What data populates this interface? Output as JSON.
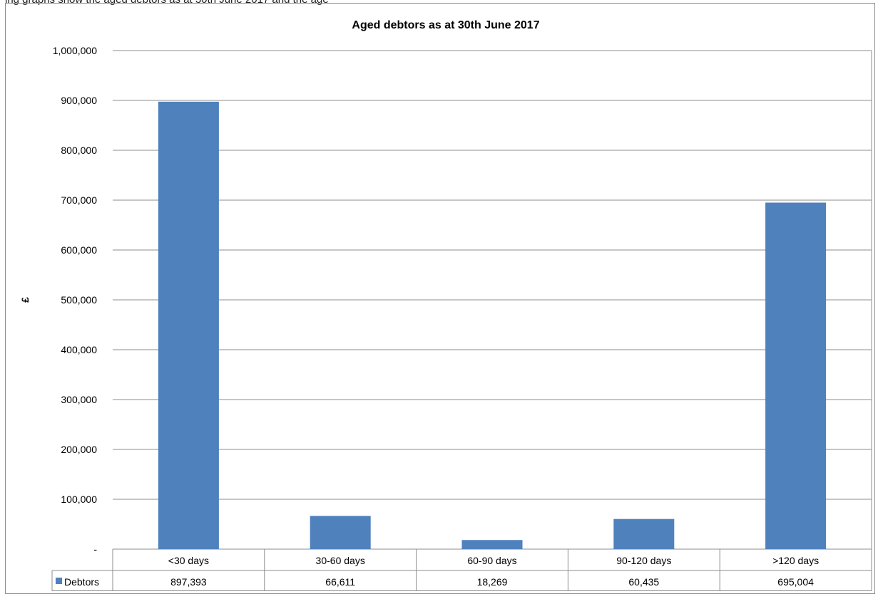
{
  "caption": "ing graphs show the aged debtors as at 30th June 2017 and the age",
  "colors": {
    "bar": "#4f81bd",
    "grid": "#8c8c8c",
    "frame": "#8c8c8c"
  },
  "chart_data": {
    "type": "bar",
    "title": "Aged debtors as at 30th  June 2017",
    "ylabel": "£",
    "xlabel": "",
    "ylim": [
      0,
      1000000
    ],
    "yticks": [
      {
        "value": 0,
        "label": "-"
      },
      {
        "value": 100000,
        "label": "100,000"
      },
      {
        "value": 200000,
        "label": "200,000"
      },
      {
        "value": 300000,
        "label": "300,000"
      },
      {
        "value": 400000,
        "label": "400,000"
      },
      {
        "value": 500000,
        "label": "500,000"
      },
      {
        "value": 600000,
        "label": "600,000"
      },
      {
        "value": 700000,
        "label": "700,000"
      },
      {
        "value": 800000,
        "label": "800,000"
      },
      {
        "value": 900000,
        "label": "900,000"
      },
      {
        "value": 1000000,
        "label": "1,000,000"
      }
    ],
    "categories": [
      "<30 days",
      "30-60 days",
      "60-90 days",
      "90-120 days",
      ">120 days"
    ],
    "grid": true,
    "legend": "data-table",
    "series": [
      {
        "name": "Debtors",
        "values": [
          897393,
          66611,
          18269,
          60435,
          695004
        ],
        "labels": [
          "897,393",
          "66,611",
          "18,269",
          "60,435",
          "695,004"
        ]
      }
    ]
  }
}
